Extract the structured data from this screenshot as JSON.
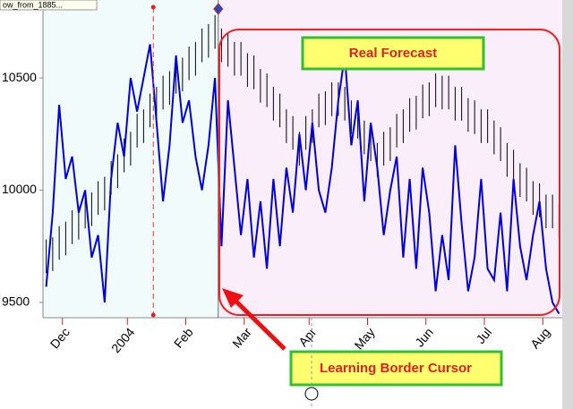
{
  "chart_data": {
    "type": "bar-line",
    "series_label": "ow_from_1885...",
    "annotations": [
      "Real Forecast",
      "Learning Border Cursor"
    ],
    "xlim": [
      0,
      80
    ],
    "xticks": [
      {
        "value": 3,
        "label": "Dec"
      },
      {
        "value": 13,
        "label": "2004"
      },
      {
        "value": 22,
        "label": "Feb"
      },
      {
        "value": 31,
        "label": "Mar"
      },
      {
        "value": 41,
        "label": "Apr"
      },
      {
        "value": 50,
        "label": "May"
      },
      {
        "value": 59,
        "label": "Jun"
      },
      {
        "value": 68,
        "label": "Jul"
      },
      {
        "value": 77,
        "label": "Aug"
      }
    ],
    "ylim": [
      9432,
      10847
    ],
    "yticks": [
      9500,
      10000,
      10500
    ],
    "learning_border": 27,
    "marker_x": 17,
    "bars": {
      "color": "#000000",
      "high": [
        9780,
        9790,
        9840,
        9860,
        9910,
        9930,
        9980,
        9990,
        10040,
        10060,
        10130,
        10160,
        10230,
        10260,
        10340,
        10360,
        10430,
        10460,
        10510,
        10530,
        10580,
        10590,
        10640,
        10660,
        10720,
        10740,
        10780,
        10720,
        10700,
        10660,
        10660,
        10610,
        10600,
        10540,
        10520,
        10460,
        10430,
        10360,
        10330,
        10260,
        10330,
        10360,
        10430,
        10440,
        10480,
        10480,
        10460,
        10400,
        10380,
        10310,
        10280,
        10210,
        10260,
        10280,
        10340,
        10360,
        10410,
        10420,
        10470,
        10480,
        10520,
        10510,
        10510,
        10460,
        10460,
        10410,
        10400,
        10360,
        10360,
        10310,
        10280,
        10210,
        10180,
        10120,
        10100,
        10040,
        10030,
        9980,
        9980,
        9940
      ],
      "low": [
        9630,
        9640,
        9690,
        9710,
        9760,
        9780,
        9830,
        9840,
        9890,
        9910,
        9980,
        10010,
        10080,
        10110,
        10190,
        10210,
        10280,
        10310,
        10360,
        10380,
        10430,
        10440,
        10490,
        10510,
        10570,
        10590,
        10630,
        10570,
        10550,
        10510,
        10510,
        10460,
        10450,
        10390,
        10370,
        10310,
        10280,
        10210,
        10180,
        10110,
        10180,
        10210,
        10280,
        10290,
        10330,
        10330,
        10310,
        10250,
        10230,
        10160,
        10130,
        10060,
        10110,
        10130,
        10190,
        10210,
        10260,
        10270,
        10320,
        10330,
        10370,
        10360,
        10360,
        10310,
        10310,
        10260,
        10250,
        10210,
        10210,
        10160,
        10130,
        10060,
        10030,
        9970,
        9950,
        9890,
        9880,
        9830,
        9830,
        9790
      ]
    },
    "line": {
      "color": "#0000dd",
      "values": [
        9570,
        9900,
        10380,
        10050,
        10150,
        9900,
        10000,
        9700,
        9800,
        9500,
        10050,
        10300,
        10150,
        10500,
        10350,
        10500,
        10650,
        10300,
        9950,
        10200,
        10600,
        10300,
        10400,
        10150,
        10000,
        10200,
        10500,
        9750,
        10400,
        10100,
        9800,
        10050,
        9700,
        9950,
        9650,
        10050,
        9750,
        10100,
        9900,
        10250,
        10000,
        10300,
        10000,
        9900,
        10100,
        10400,
        10600,
        10200,
        10400,
        9950,
        10300,
        10100,
        9800,
        10000,
        10150,
        9700,
        10050,
        9650,
        10100,
        9900,
        9550,
        9800,
        9600,
        10200,
        9850,
        9550,
        9700,
        10050,
        9650,
        9600,
        9900,
        9550,
        10050,
        9750,
        9600,
        9800,
        9950,
        9650,
        9500,
        9450
      ]
    }
  }
}
